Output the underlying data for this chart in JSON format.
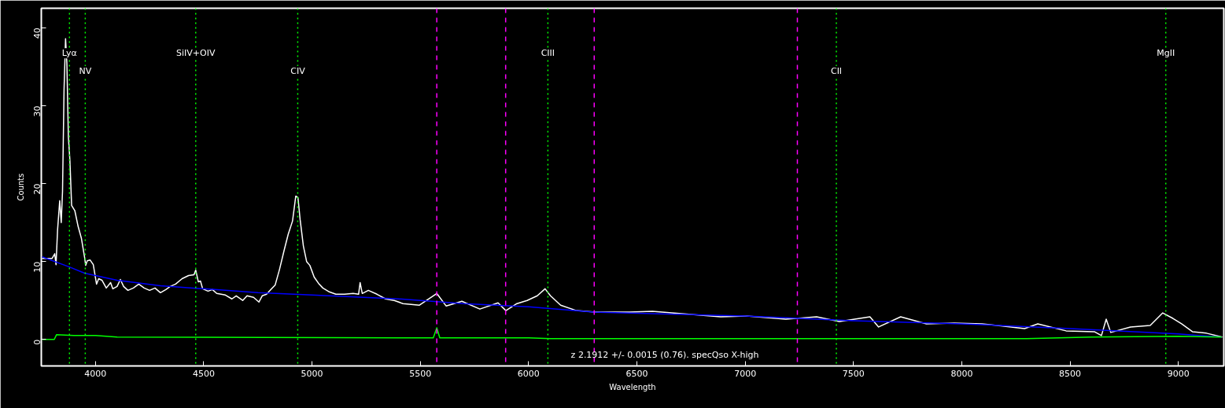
{
  "chart_data": {
    "type": "line",
    "xlabel": "Wavelength",
    "ylabel": "Counts",
    "xlim": [
      3750,
      9210
    ],
    "ylim": [
      -3.4,
      42.5
    ],
    "xticks": [
      4000,
      4500,
      5000,
      5500,
      6000,
      6500,
      7000,
      7500,
      8000,
      8500,
      9000
    ],
    "yticks": [
      0,
      10,
      20,
      30,
      40
    ],
    "grid": false,
    "marker": "none",
    "line_style": "solid",
    "series": [
      {
        "color": "#ffffff",
        "x": [
          3754,
          3800,
          3812,
          3818,
          3825,
          3835,
          3842,
          3848,
          3855,
          3862,
          3868,
          3875,
          3882,
          3890,
          3905,
          3920,
          3935,
          3950,
          3955,
          3962,
          3975,
          3990,
          4005,
          4015,
          4030,
          4050,
          4070,
          4080,
          4100,
          4115,
          4130,
          4150,
          4175,
          4200,
          4225,
          4250,
          4275,
          4300,
          4325,
          4345,
          4370,
          4400,
          4430,
          4455,
          4463,
          4475,
          4485,
          4495,
          4520,
          4540,
          4560,
          4600,
          4630,
          4650,
          4680,
          4700,
          4730,
          4755,
          4770,
          4790,
          4810,
          4830,
          4850,
          4870,
          4890,
          4910,
          4925,
          4935,
          4945,
          4960,
          4975,
          4990,
          5010,
          5030,
          5050,
          5080,
          5110,
          5150,
          5190,
          5215,
          5222,
          5232,
          5260,
          5300,
          5340,
          5380,
          5420,
          5496,
          5576,
          5619,
          5692,
          5775,
          5859,
          5895,
          5946,
          5993,
          6040,
          6076,
          6101,
          6148,
          6221,
          6308,
          6464,
          6572,
          6706,
          6887,
          7007,
          7188,
          7330,
          7435,
          7576,
          7616,
          7718,
          7837,
          7964,
          8094,
          8290,
          8351,
          8482,
          8612,
          8645,
          8667,
          8688,
          8779,
          8870,
          8928,
          8975,
          9015,
          9065,
          9130,
          9203
        ],
        "values": [
          10.4,
          10.4,
          11.0,
          9.6,
          14,
          17.8,
          15,
          19,
          32,
          38.6,
          35.5,
          26,
          23,
          17.2,
          16.5,
          14.5,
          13,
          10.5,
          9.5,
          10.1,
          10.2,
          9.6,
          7.1,
          7.8,
          7.6,
          6.6,
          7.3,
          6.5,
          6.8,
          7.7,
          6.8,
          6.3,
          6.6,
          7.1,
          6.6,
          6.3,
          6.6,
          6.0,
          6.4,
          6.8,
          7.1,
          7.8,
          8.2,
          8.3,
          8.9,
          7.4,
          7.5,
          6.5,
          6.2,
          6.4,
          5.9,
          5.7,
          5.2,
          5.6,
          5.0,
          5.6,
          5.4,
          4.8,
          5.6,
          5.8,
          6.4,
          7.0,
          9.0,
          11.3,
          13.5,
          15.2,
          18.4,
          18.2,
          15.4,
          12.0,
          10.0,
          9.5,
          8.0,
          7.2,
          6.6,
          6.1,
          5.8,
          5.8,
          5.9,
          5.8,
          7.3,
          5.9,
          6.3,
          5.8,
          5.2,
          5.0,
          4.6,
          4.4,
          5.9,
          4.3,
          4.9,
          3.9,
          4.7,
          3.7,
          4.6,
          5.0,
          5.6,
          6.5,
          5.6,
          4.4,
          3.7,
          3.5,
          3.5,
          3.6,
          3.3,
          2.9,
          3.0,
          2.6,
          2.9,
          2.3,
          2.9,
          1.6,
          2.9,
          2.0,
          2.1,
          2.0,
          1.4,
          2.0,
          1.1,
          1.0,
          0.5,
          2.6,
          0.9,
          1.6,
          1.8,
          3.4,
          2.7,
          2.0,
          1.0,
          0.8,
          0.3
        ]
      },
      {
        "color": "#0000ff",
        "x": [
          3754,
          3880,
          3950,
          4100,
          4300,
          4500,
          4750,
          5000,
          5400,
          5700,
          6000,
          6300,
          7000,
          7500,
          8000,
          8500,
          9000,
          9200
        ],
        "values": [
          10.6,
          9.3,
          8.5,
          7.6,
          6.9,
          6.5,
          6.0,
          5.7,
          5.2,
          4.6,
          4.2,
          3.5,
          3.0,
          2.4,
          2.0,
          1.4,
          0.7,
          0.3
        ]
      },
      {
        "color": "#00ff00",
        "x": [
          3754,
          3810,
          3820,
          3900,
          4000,
          4100,
          5400,
          5560,
          5576,
          5590,
          6000,
          6100,
          7000,
          7500,
          8300,
          8600,
          9000,
          9200
        ],
        "values": [
          0,
          0,
          0.6,
          0.5,
          0.5,
          0.3,
          0.2,
          0.2,
          1.5,
          0.2,
          0.2,
          0.1,
          0.1,
          0.1,
          0.1,
          0.3,
          0.4,
          0.3
        ]
      }
    ],
    "ref_lines": [
      {
        "axis": "x",
        "value": 3880,
        "label": "Lyα",
        "color": "#00ff00",
        "line_style": "dotted"
      },
      {
        "axis": "x",
        "value": 3953,
        "label": "NV",
        "color": "#00ff00",
        "line_style": "dotted"
      },
      {
        "axis": "x",
        "value": 4463,
        "label": "SiIV+OIV",
        "color": "#00ff00",
        "line_style": "dotted"
      },
      {
        "axis": "x",
        "value": 4934,
        "label": "CIV",
        "color": "#00ff00",
        "line_style": "dotted"
      },
      {
        "axis": "x",
        "value": 6089,
        "label": "CIII",
        "color": "#00ff00",
        "line_style": "dotted"
      },
      {
        "axis": "x",
        "value": 7421,
        "label": "CII",
        "color": "#00ff00",
        "line_style": "dotted"
      },
      {
        "axis": "x",
        "value": 8942,
        "label": "MgII",
        "color": "#00ff00",
        "line_style": "dotted"
      },
      {
        "axis": "x",
        "value": 5576,
        "color": "#ff00ff",
        "line_style": "dashed"
      },
      {
        "axis": "x",
        "value": 5894,
        "color": "#ff00ff",
        "line_style": "dashed"
      },
      {
        "axis": "x",
        "value": 6303,
        "color": "#ff00ff",
        "line_style": "dashed"
      },
      {
        "axis": "x",
        "value": 7241,
        "color": "#ff00ff",
        "line_style": "dashed"
      }
    ],
    "annotations": [
      "z 2.1912 +/- 0.0015 (0.76). specQso X-high"
    ]
  }
}
